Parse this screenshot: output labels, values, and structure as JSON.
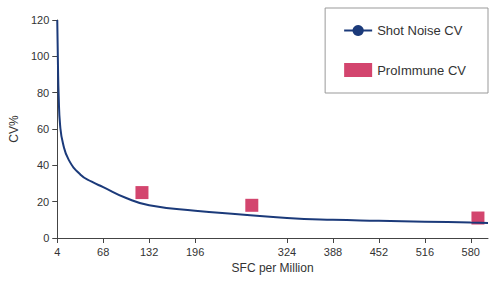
{
  "chart_data": {
    "type": "line",
    "x_label": "SFC per Million",
    "y_label": "CV%",
    "series": [
      {
        "name": "Shot Noise CV",
        "type": "line",
        "color": "#1b3a7a",
        "line_style": "solid",
        "x": [
          4,
          5,
          6,
          8,
          12,
          20,
          36,
          52,
          68,
          100,
          132,
          196,
          260,
          324,
          388,
          452,
          516,
          580,
          604
        ],
        "values": [
          120,
          95,
          78,
          62,
          52,
          43,
          35,
          31,
          28,
          22,
          18,
          15,
          13,
          11,
          10,
          9.5,
          9,
          8.5,
          8.3
        ]
      },
      {
        "name": "ProImmune CV",
        "type": "scatter",
        "color": "#c8174a",
        "marker": "square",
        "x": [
          122,
          275,
          590
        ],
        "values": [
          25,
          18,
          11
        ]
      }
    ],
    "xlim": [
      4,
      604
    ],
    "xticks": [
      4,
      68,
      132,
      196,
      324,
      388,
      452,
      516,
      580
    ],
    "ylim": [
      0,
      120
    ],
    "yticks": [
      0,
      20,
      40,
      60,
      80,
      100,
      120
    ],
    "legend": "upper right",
    "grid": false
  }
}
